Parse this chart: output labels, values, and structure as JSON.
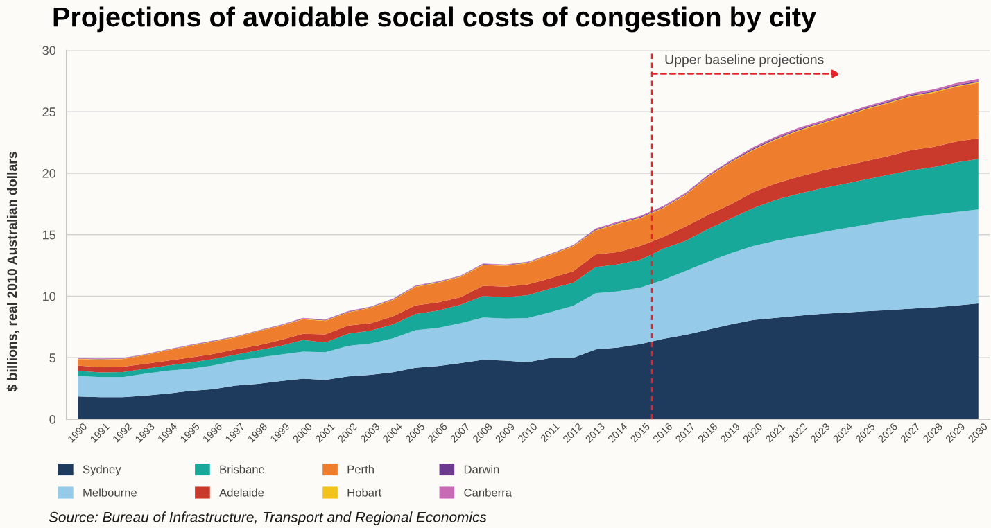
{
  "chart_data": {
    "type": "area",
    "stacked": true,
    "title": "Projections of avoidable social costs of congestion by city",
    "ylabel": "$ billions, real 2010 Australian dollars",
    "x": [
      1990,
      1991,
      1992,
      1993,
      1994,
      1995,
      1996,
      1997,
      1998,
      1999,
      2000,
      2001,
      2002,
      2003,
      2004,
      2005,
      2006,
      2007,
      2008,
      2009,
      2010,
      2011,
      2012,
      2013,
      2014,
      2015,
      2016,
      2017,
      2018,
      2019,
      2020,
      2021,
      2022,
      2023,
      2024,
      2025,
      2026,
      2027,
      2028,
      2029,
      2030
    ],
    "xlim": [
      1989.5,
      2030.5
    ],
    "xticks": [
      1990,
      1991,
      1992,
      1993,
      1994,
      1995,
      1996,
      1997,
      1998,
      1999,
      2000,
      2001,
      2002,
      2003,
      2004,
      2005,
      2006,
      2007,
      2008,
      2009,
      2010,
      2011,
      2012,
      2013,
      2014,
      2015,
      2016,
      2017,
      2018,
      2019,
      2020,
      2021,
      2022,
      2023,
      2024,
      2025,
      2026,
      2027,
      2028,
      2029,
      2030
    ],
    "ylim": [
      0,
      30
    ],
    "yticks": [
      0,
      5,
      10,
      15,
      20,
      25,
      30
    ],
    "grid": "y",
    "legend": "bottom left",
    "series": [
      {
        "name": "Sydney",
        "color": "#1e3a5c",
        "values": [
          1.84,
          1.79,
          1.79,
          1.92,
          2.09,
          2.29,
          2.44,
          2.73,
          2.88,
          3.1,
          3.29,
          3.2,
          3.48,
          3.61,
          3.82,
          4.19,
          4.32,
          4.57,
          4.83,
          4.76,
          4.64,
          4.98,
          4.98,
          5.68,
          5.83,
          6.11,
          6.54,
          6.86,
          7.28,
          7.71,
          8.07,
          8.24,
          8.41,
          8.56,
          8.66,
          8.77,
          8.87,
          8.98,
          9.09,
          9.24,
          9.41
        ]
      },
      {
        "name": "Melbourne",
        "color": "#95cbe8",
        "values": [
          1.68,
          1.63,
          1.63,
          1.78,
          1.86,
          1.81,
          1.92,
          2.01,
          2.14,
          2.16,
          2.2,
          2.25,
          2.48,
          2.54,
          2.76,
          3.05,
          3.1,
          3.23,
          3.44,
          3.42,
          3.59,
          3.72,
          4.23,
          4.56,
          4.56,
          4.6,
          4.78,
          5.2,
          5.52,
          5.79,
          6.01,
          6.26,
          6.45,
          6.62,
          6.84,
          7.05,
          7.27,
          7.43,
          7.53,
          7.6,
          7.64
        ]
      },
      {
        "name": "Brisbane",
        "color": "#17a89a",
        "values": [
          0.41,
          0.38,
          0.41,
          0.4,
          0.41,
          0.51,
          0.53,
          0.5,
          0.58,
          0.7,
          0.94,
          0.79,
          0.99,
          1.05,
          1.13,
          1.31,
          1.41,
          1.5,
          1.75,
          1.74,
          1.86,
          1.92,
          1.88,
          2.13,
          2.2,
          2.26,
          2.54,
          2.44,
          2.66,
          2.81,
          3.07,
          3.33,
          3.46,
          3.57,
          3.61,
          3.67,
          3.73,
          3.82,
          3.87,
          4.03,
          4.1
        ]
      },
      {
        "name": "Adelaide",
        "color": "#c93a2c",
        "values": [
          0.43,
          0.43,
          0.44,
          0.41,
          0.4,
          0.41,
          0.41,
          0.44,
          0.4,
          0.47,
          0.51,
          0.66,
          0.66,
          0.6,
          0.65,
          0.7,
          0.66,
          0.61,
          0.83,
          0.85,
          0.87,
          0.85,
          0.94,
          1.03,
          1.0,
          1.13,
          0.96,
          1.17,
          1.16,
          1.16,
          1.32,
          1.34,
          1.38,
          1.44,
          1.48,
          1.49,
          1.53,
          1.64,
          1.65,
          1.7,
          1.7
        ]
      },
      {
        "name": "Perth",
        "color": "#ee7d2e",
        "values": [
          0.53,
          0.62,
          0.62,
          0.7,
          0.84,
          0.94,
          1.0,
          0.96,
          1.14,
          1.15,
          1.18,
          1.09,
          1.06,
          1.24,
          1.32,
          1.5,
          1.6,
          1.65,
          1.69,
          1.69,
          1.73,
          1.88,
          2.01,
          1.92,
          2.29,
          2.25,
          2.33,
          2.55,
          3.08,
          3.4,
          3.4,
          3.55,
          3.72,
          3.8,
          4.0,
          4.2,
          4.29,
          4.35,
          4.4,
          4.46,
          4.5
        ]
      },
      {
        "name": "Hobart",
        "color": "#f2c31a",
        "values": [
          0.03,
          0.03,
          0.03,
          0.03,
          0.03,
          0.03,
          0.03,
          0.03,
          0.03,
          0.03,
          0.04,
          0.04,
          0.04,
          0.04,
          0.04,
          0.04,
          0.04,
          0.04,
          0.04,
          0.04,
          0.04,
          0.04,
          0.04,
          0.05,
          0.05,
          0.05,
          0.05,
          0.05,
          0.05,
          0.05,
          0.06,
          0.06,
          0.06,
          0.06,
          0.06,
          0.06,
          0.06,
          0.06,
          0.06,
          0.06,
          0.06
        ]
      },
      {
        "name": "Darwin",
        "color": "#6c3a8e",
        "values": [
          0.03,
          0.03,
          0.03,
          0.03,
          0.03,
          0.03,
          0.03,
          0.03,
          0.03,
          0.03,
          0.04,
          0.04,
          0.04,
          0.04,
          0.04,
          0.04,
          0.04,
          0.04,
          0.04,
          0.04,
          0.04,
          0.04,
          0.04,
          0.06,
          0.06,
          0.06,
          0.06,
          0.06,
          0.06,
          0.06,
          0.08,
          0.08,
          0.08,
          0.08,
          0.08,
          0.08,
          0.08,
          0.08,
          0.08,
          0.08,
          0.08
        ]
      },
      {
        "name": "Canberra",
        "color": "#c86bb5",
        "values": [
          0.03,
          0.03,
          0.03,
          0.03,
          0.03,
          0.03,
          0.03,
          0.03,
          0.03,
          0.03,
          0.04,
          0.04,
          0.04,
          0.04,
          0.04,
          0.04,
          0.04,
          0.04,
          0.04,
          0.04,
          0.04,
          0.04,
          0.04,
          0.08,
          0.08,
          0.08,
          0.08,
          0.08,
          0.08,
          0.08,
          0.12,
          0.12,
          0.12,
          0.12,
          0.12,
          0.12,
          0.12,
          0.13,
          0.13,
          0.15,
          0.18
        ]
      }
    ],
    "ref_lines": [
      {
        "axis": "x",
        "value": 2015.5,
        "label": "Upper baseline projections",
        "color": "#e3262c",
        "line_style": "dashed"
      }
    ],
    "annotations": [
      "Source: Bureau of Infrastructure, Transport and Regional Economics"
    ]
  }
}
